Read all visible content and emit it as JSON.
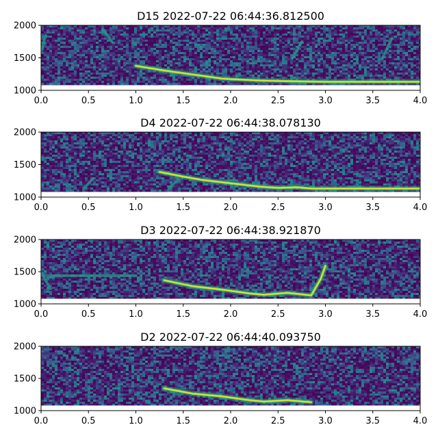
{
  "chart_data": [
    {
      "type": "heatmap",
      "title": "D15 2022-07-22 06:44:36.812500",
      "xlim": [
        0,
        4
      ],
      "ylim": [
        1000,
        2000
      ],
      "xticks": [
        "0.0",
        "0.5",
        "1.0",
        "1.5",
        "2.0",
        "2.5",
        "3.0",
        "3.5",
        "4.0"
      ],
      "yticks": [
        "1000",
        "1500",
        "2000"
      ],
      "colormap": "viridis",
      "trace": [
        [
          1.0,
          1390
        ],
        [
          1.3,
          1320
        ],
        [
          1.6,
          1260
        ],
        [
          1.9,
          1200
        ],
        [
          2.0,
          1190
        ],
        [
          2.3,
          1170
        ],
        [
          2.6,
          1160
        ],
        [
          3.0,
          1150
        ],
        [
          4.0,
          1150
        ]
      ],
      "faint_marks": [
        [
          [
            0.65,
            1950
          ],
          [
            0.75,
            1750
          ]
        ],
        [
          [
            2.65,
            1500
          ],
          [
            2.75,
            1750
          ]
        ],
        [
          [
            3.6,
            1500
          ],
          [
            3.7,
            1800
          ]
        ],
        [
          [
            0.0,
            1600
          ],
          [
            0.05,
            1850
          ]
        ]
      ]
    },
    {
      "type": "heatmap",
      "title": "D4 2022-07-22 06:44:38.078130",
      "xlim": [
        0,
        4
      ],
      "ylim": [
        1000,
        2000
      ],
      "xticks": [
        "0.0",
        "0.5",
        "1.0",
        "1.5",
        "2.0",
        "2.5",
        "3.0",
        "3.5",
        "4.0"
      ],
      "yticks": [
        "1000",
        "1500",
        "2000"
      ],
      "colormap": "viridis",
      "trace": [
        [
          1.25,
          1400
        ],
        [
          1.5,
          1330
        ],
        [
          1.7,
          1280
        ],
        [
          2.0,
          1230
        ],
        [
          2.3,
          1180
        ],
        [
          2.5,
          1160
        ],
        [
          2.7,
          1170
        ],
        [
          2.85,
          1150
        ],
        [
          4.0,
          1150
        ]
      ],
      "faint_marks": [
        [
          [
            0.45,
            1150
          ],
          [
            0.55,
            1300
          ]
        ],
        [
          [
            1.35,
            1150
          ],
          [
            1.45,
            1300
          ]
        ]
      ]
    },
    {
      "type": "heatmap",
      "title": "D3 2022-07-22 06:44:38.921870",
      "xlim": [
        0,
        4
      ],
      "ylim": [
        1000,
        2000
      ],
      "xticks": [
        "0.0",
        "0.5",
        "1.0",
        "1.5",
        "2.0",
        "2.5",
        "3.0",
        "3.5",
        "4.0"
      ],
      "yticks": [
        "1000",
        "1500",
        "2000"
      ],
      "colormap": "viridis",
      "trace": [
        [
          1.3,
          1380
        ],
        [
          1.6,
          1290
        ],
        [
          1.9,
          1240
        ],
        [
          2.2,
          1180
        ],
        [
          2.35,
          1160
        ],
        [
          2.6,
          1190
        ],
        [
          2.85,
          1150
        ],
        [
          2.95,
          1400
        ],
        [
          3.0,
          1600
        ]
      ],
      "faint_marks": [
        [
          [
            0.0,
            1500
          ],
          [
            0.1,
            1250
          ]
        ],
        [
          [
            0.1,
            1450
          ],
          [
            1.0,
            1450
          ]
        ]
      ]
    },
    {
      "type": "heatmap",
      "title": "D2 2022-07-22 06:44:40.093750",
      "xlim": [
        0,
        4
      ],
      "ylim": [
        1000,
        2000
      ],
      "xticks": [
        "0.0",
        "0.5",
        "1.0",
        "1.5",
        "2.0",
        "2.5",
        "3.0",
        "3.5",
        "4.0"
      ],
      "yticks": [
        "1000",
        "1500",
        "2000"
      ],
      "colormap": "viridis",
      "trace": [
        [
          1.3,
          1360
        ],
        [
          1.6,
          1280
        ],
        [
          1.9,
          1240
        ],
        [
          2.2,
          1180
        ],
        [
          2.35,
          1160
        ],
        [
          2.6,
          1180
        ],
        [
          2.85,
          1150
        ]
      ],
      "faint_marks": []
    }
  ],
  "colors": {
    "background_low": "#2d1160",
    "background_mid": "#3b528b",
    "mid": "#21918c",
    "high": "#5ec962",
    "peak": "#fde725"
  }
}
